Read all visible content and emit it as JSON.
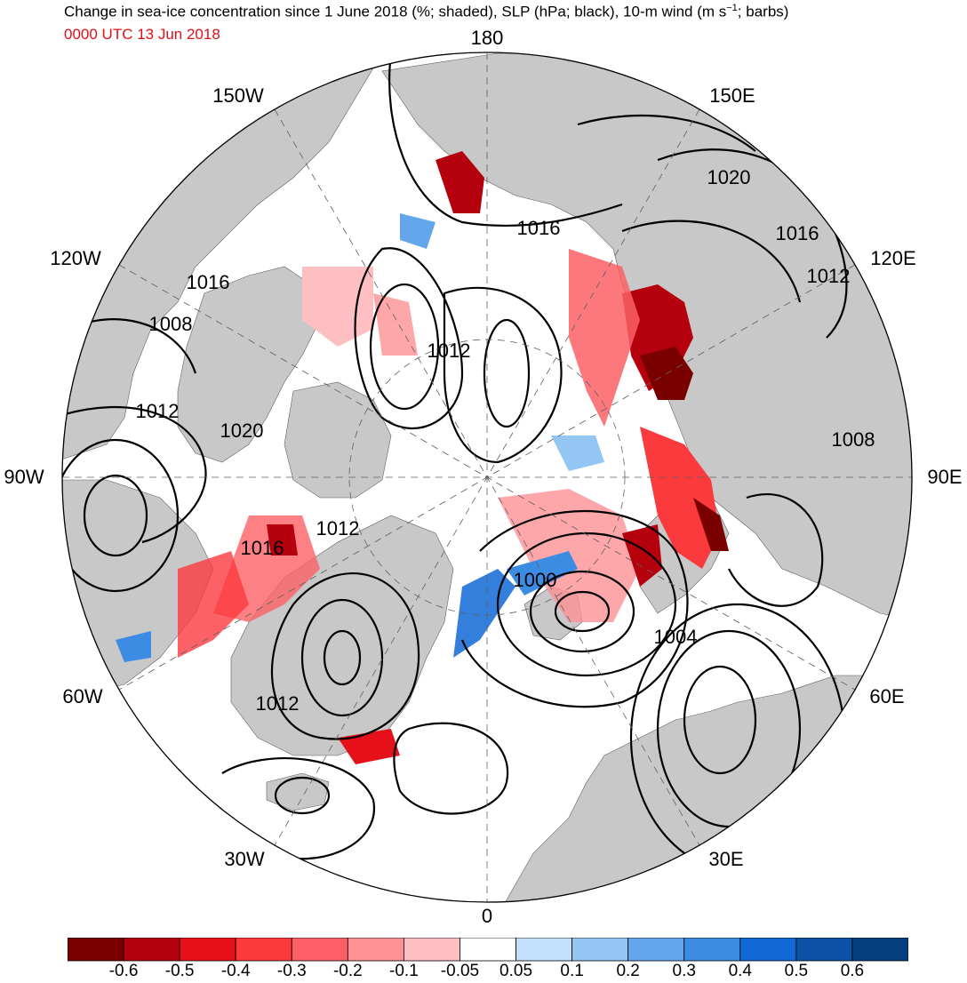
{
  "title": {
    "main_prefix": "Change in sea-ice concentration since 1 June 2018 (%; shaded), SLP (hPa; black), 10-m wind (m s",
    "main_sup": "−1",
    "main_suffix": "; barbs)",
    "valid_time": "0000 UTC 13 Jun 2018"
  },
  "longitude_labels": {
    "top": "180",
    "bottom": "0",
    "left": "90W",
    "right": "90E",
    "nw_upper": "150W",
    "nw_lower": "120W",
    "ne_upper": "150E",
    "ne_lower": "120E",
    "sw_upper": "60W",
    "sw_lower": "30W",
    "se_upper": "60E",
    "se_lower": "30E"
  },
  "slp_contour_labels": [
    "1016",
    "1020",
    "1016",
    "1012",
    "1016",
    "1008",
    "1012",
    "1012",
    "1020",
    "1008",
    "1016",
    "1012",
    "1000",
    "1004",
    "1012"
  ],
  "colors": {
    "land": "#c8c8c8",
    "ocean": "#ffffff",
    "contour": "#000000"
  },
  "colorbar": {
    "colors": [
      "#7a0000",
      "#b5000d",
      "#e6101a",
      "#fb3a3e",
      "#fc6066",
      "#fd9195",
      "#fdbfc2",
      "#ffffff",
      "#c3e1fb",
      "#93c6f3",
      "#64a6eb",
      "#3b8ce2",
      "#1169d6",
      "#0b52a6",
      "#073e7d"
    ],
    "labels": [
      "-0.6",
      "-0.5",
      "-0.4",
      "-0.3",
      "-0.2",
      "-0.1",
      "-0.05",
      "0.05",
      "0.1",
      "0.2",
      "0.3",
      "0.4",
      "0.5",
      "0.6"
    ]
  }
}
